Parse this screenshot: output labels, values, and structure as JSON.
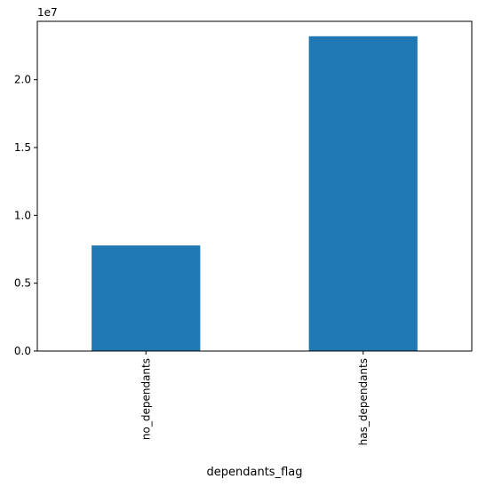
{
  "chart_data": {
    "type": "bar",
    "categories": [
      "no_dependants",
      "has_dependants"
    ],
    "values": [
      7780000,
      23200000
    ],
    "xlabel": "dependants_flag",
    "ylabel": "",
    "ylim": [
      0,
      24300000
    ],
    "scale_factor_label": "1e7",
    "yticks": [
      0,
      5000000,
      10000000,
      15000000,
      20000000
    ],
    "ytick_labels": [
      "0.0",
      "0.5",
      "1.0",
      "1.5",
      "2.0"
    ],
    "grid": false,
    "legend": "none",
    "bar_color": "#1f77b4"
  }
}
